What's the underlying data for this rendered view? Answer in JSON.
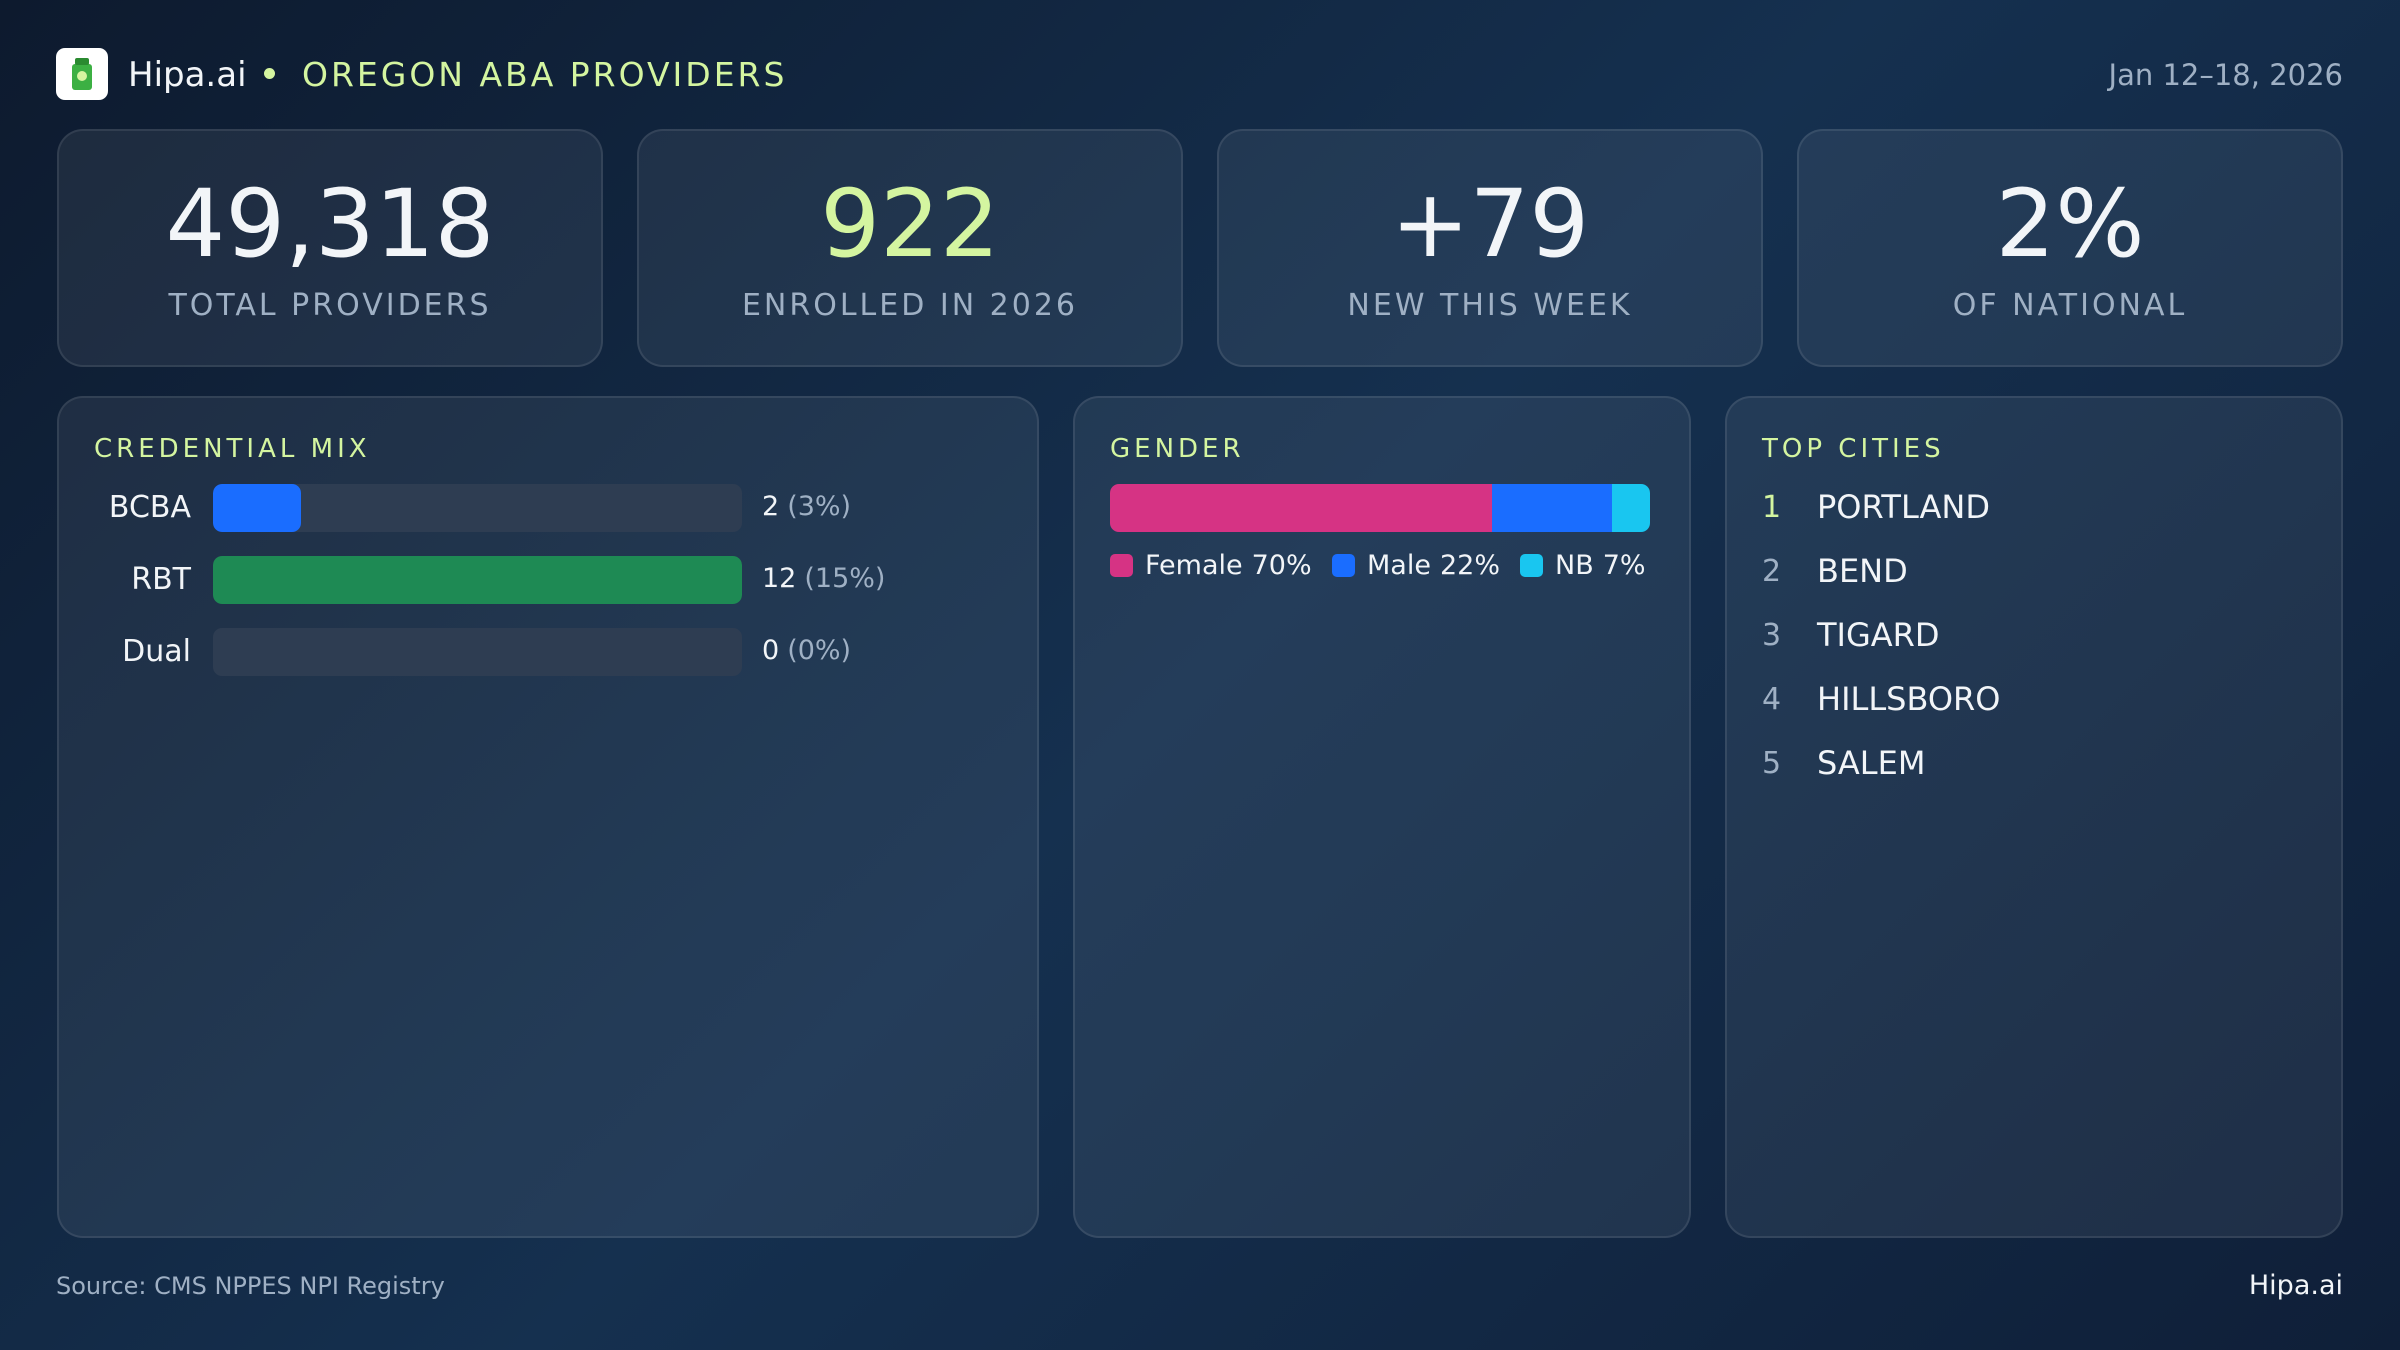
{
  "header": {
    "brand": "Hipa.ai",
    "title": "OREGON ABA PROVIDERS",
    "date_range": "Jan 12–18, 2026"
  },
  "kpis": [
    {
      "value": "49,318",
      "label": "TOTAL PROVIDERS"
    },
    {
      "value": "922",
      "label": "ENROLLED IN 2026"
    },
    {
      "value": "+79",
      "label": "NEW THIS WEEK"
    },
    {
      "value": "2%",
      "label": "OF NATIONAL"
    }
  ],
  "credential_mix": {
    "type": "bar",
    "title": "CREDENTIAL MIX",
    "categories": [
      "BCBA",
      "RBT",
      "Dual"
    ],
    "values": [
      2,
      12,
      0
    ],
    "share_labels": [
      "(3%)",
      "(15%)",
      "(0%)"
    ],
    "colors": [
      "#1a6dff",
      "#1e8a54",
      "#1e8a54"
    ]
  },
  "gender": {
    "type": "stacked-bar",
    "title": "GENDER",
    "categories": [
      "Female",
      "Male",
      "NB"
    ],
    "values": [
      70,
      22,
      7
    ],
    "value_labels": [
      "70%",
      "22%",
      "7%"
    ],
    "colors": [
      "#d63384",
      "#1a6dff",
      "#19c6f0"
    ]
  },
  "top_cities": {
    "title": "TOP CITIES",
    "ranks": [
      "1",
      "2",
      "3",
      "4",
      "5"
    ],
    "cities": [
      "PORTLAND",
      "BEND",
      "TIGARD",
      "HILLSBORO",
      "SALEM"
    ]
  },
  "footer": {
    "source": "Source: CMS NPPES NPI Registry",
    "brand": "Hipa.ai"
  }
}
